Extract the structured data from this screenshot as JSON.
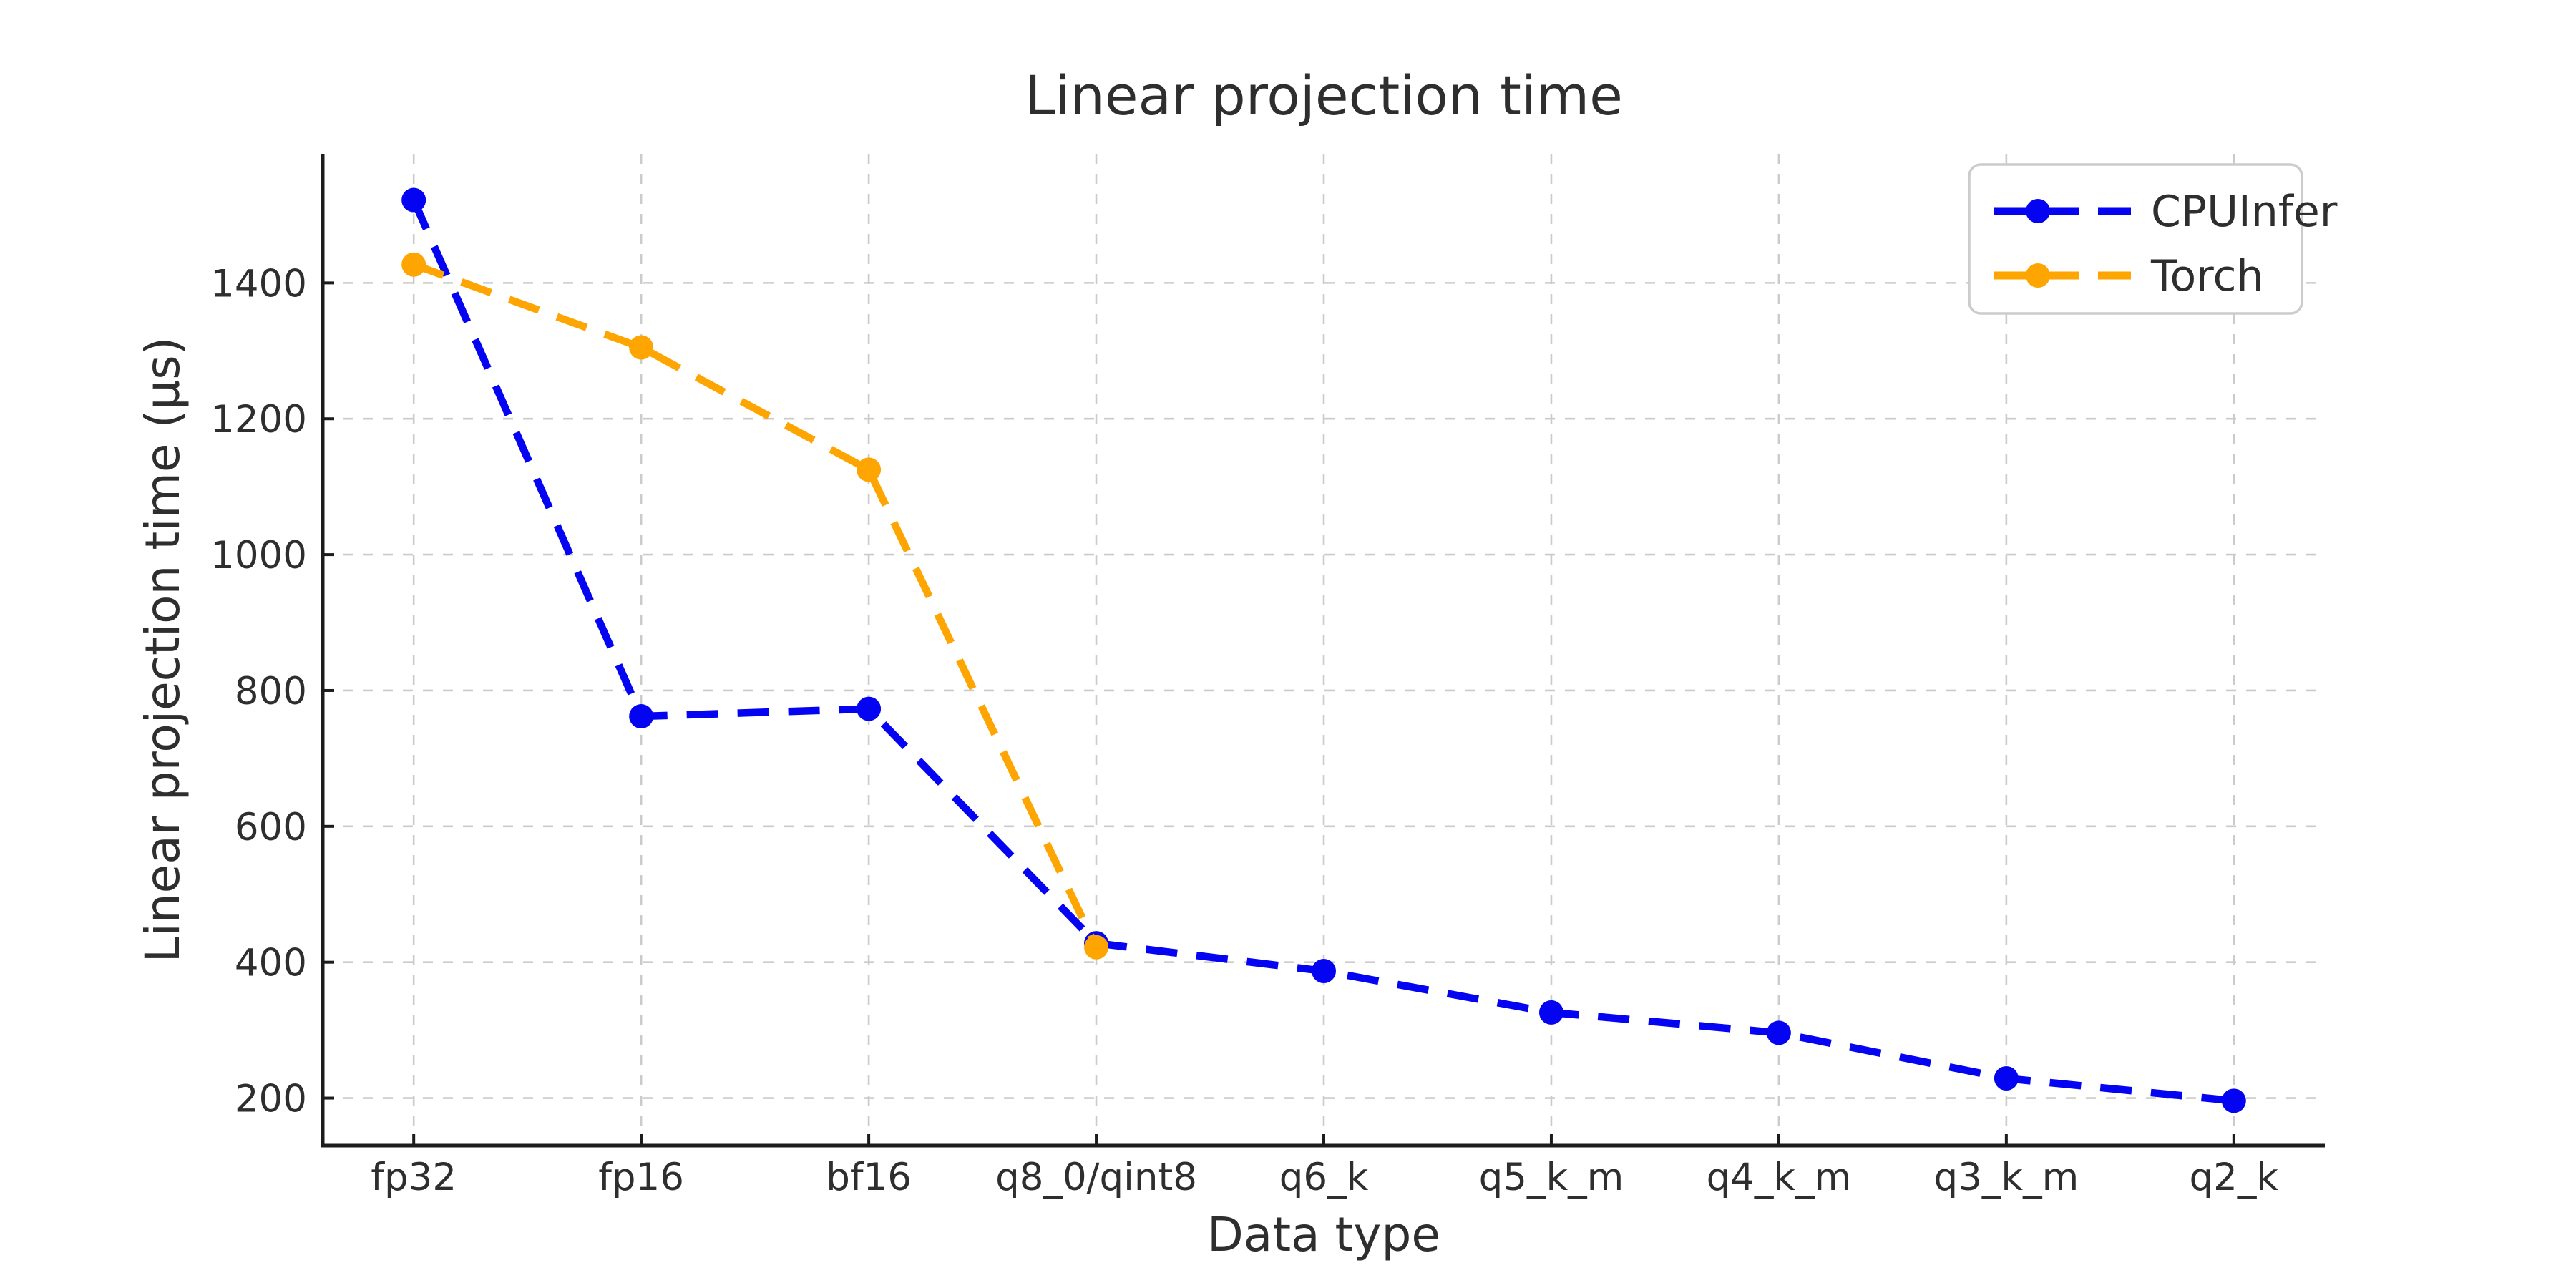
{
  "chart_data": {
    "type": "line",
    "title": "Linear projection time",
    "xlabel": "Data type",
    "ylabel": "Linear projection time (µs)",
    "categories": [
      "fp32",
      "fp16",
      "bf16",
      "q8_0/qint8",
      "q6_k",
      "q5_k_m",
      "q4_k_m",
      "q3_k_m",
      "q2_k"
    ],
    "series": [
      {
        "name": "CPUInfer",
        "color": "#0404f2",
        "values": [
          1522,
          762,
          773,
          428,
          387,
          326,
          296,
          229,
          196
        ]
      },
      {
        "name": "Torch",
        "color": "#ffa502",
        "values": [
          1427,
          1305,
          1125,
          422
        ]
      }
    ],
    "yticks": [
      200,
      400,
      600,
      800,
      1000,
      1200,
      1400
    ],
    "ylim": [
      130,
      1590
    ],
    "grid": true,
    "grid_style": "dashed",
    "line_style": "dashed",
    "marker": "circle",
    "legend_position": "upper right",
    "legend_labels": [
      "CPUInfer",
      "Torch"
    ]
  },
  "colors": {
    "background": "#ffffff",
    "grid": "#cbcbcb",
    "spine": "#1c1c1c",
    "text": "#2e2e2e",
    "legend_border": "#cccccc",
    "cpuinfer_blue": "#0404f2",
    "torch_orange": "#ffa502"
  }
}
